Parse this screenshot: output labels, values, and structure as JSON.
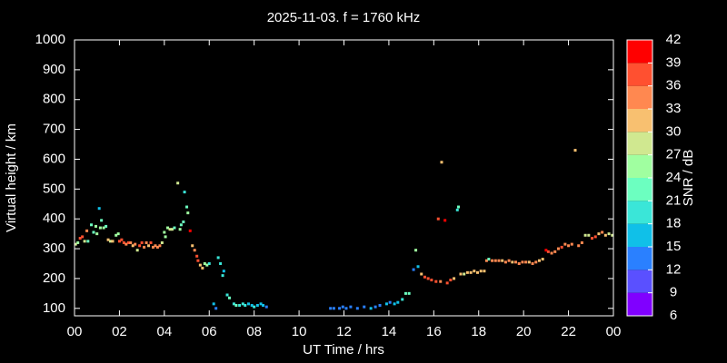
{
  "chart_data": {
    "type": "scatter",
    "title": "2025-11-03. f = 1760 kHz",
    "x_label": "UT Time / hrs",
    "y_label": "Virtual height / km",
    "xlim": [
      0,
      24
    ],
    "ylim": [
      75,
      1000
    ],
    "xticks": [
      {
        "value": 0,
        "label": "00"
      },
      {
        "value": 2,
        "label": "02"
      },
      {
        "value": 4,
        "label": "04"
      },
      {
        "value": 6,
        "label": "06"
      },
      {
        "value": 8,
        "label": "08"
      },
      10,
      12,
      14,
      16,
      18,
      20,
      22,
      {
        "value": 24,
        "label": "00"
      }
    ],
    "yticks": [
      100,
      200,
      300,
      400,
      500,
      600,
      700,
      800,
      900,
      1000
    ],
    "colorbar": {
      "label": "SNR / dB",
      "ticks": [
        6,
        9,
        12,
        15,
        18,
        21,
        24,
        27,
        30,
        33,
        36,
        39,
        42
      ],
      "colors": [
        "#8000ff",
        "#5a50ff",
        "#2a80ff",
        "#10c0e8",
        "#3ae6d8",
        "#6cffc0",
        "#a0ffa0",
        "#d0e890",
        "#f8c070",
        "#ff8850",
        "#ff5030",
        "#ff0000"
      ]
    },
    "x": [
      0.05,
      0.15,
      0.25,
      0.35,
      0.45,
      0.55,
      0.6,
      0.75,
      0.85,
      0.95,
      1.0,
      1.1,
      1.15,
      1.2,
      1.3,
      1.4,
      1.5,
      1.6,
      1.7,
      1.85,
      1.95,
      2.0,
      2.1,
      2.2,
      2.3,
      2.4,
      2.5,
      2.6,
      2.7,
      2.8,
      2.9,
      3.0,
      3.1,
      3.2,
      3.3,
      3.4,
      3.5,
      3.6,
      3.7,
      3.8,
      3.9,
      4.0,
      4.05,
      4.15,
      4.25,
      4.35,
      4.45,
      4.6,
      4.7,
      4.75,
      4.85,
      4.9,
      5.0,
      5.05,
      5.15,
      5.25,
      5.35,
      5.45,
      5.5,
      5.6,
      5.7,
      5.8,
      5.9,
      6.0,
      6.2,
      6.3,
      6.4,
      6.5,
      6.6,
      6.65,
      6.8,
      6.9,
      7.1,
      7.2,
      7.35,
      7.5,
      7.6,
      7.75,
      7.9,
      8.0,
      8.15,
      8.3,
      8.4,
      8.55,
      11.4,
      11.55,
      11.8,
      11.95,
      12.1,
      12.3,
      12.6,
      12.9,
      13.2,
      13.4,
      13.6,
      13.9,
      14.05,
      14.25,
      14.4,
      14.6,
      14.75,
      14.9,
      15.1,
      15.2,
      15.3,
      15.45,
      15.6,
      15.75,
      15.9,
      16.1,
      16.2,
      16.3,
      16.35,
      16.5,
      16.6,
      16.75,
      16.9,
      17.05,
      17.1,
      17.2,
      17.35,
      17.5,
      17.65,
      17.8,
      17.95,
      18.1,
      18.25,
      18.35,
      18.45,
      18.6,
      18.75,
      18.9,
      19.05,
      19.2,
      19.35,
      19.5,
      19.65,
      19.8,
      19.95,
      20.1,
      20.25,
      20.4,
      20.55,
      20.7,
      20.85,
      21.0,
      21.1,
      21.25,
      21.4,
      21.55,
      21.7,
      21.85,
      22.0,
      22.15,
      22.3,
      22.45,
      22.6,
      22.75,
      22.9,
      23.05,
      23.2,
      23.35,
      23.5,
      23.65,
      23.8,
      23.95
    ],
    "y": [
      315,
      320,
      335,
      340,
      325,
      360,
      325,
      380,
      355,
      375,
      350,
      435,
      370,
      395,
      370,
      375,
      330,
      325,
      325,
      345,
      350,
      325,
      330,
      320,
      315,
      320,
      320,
      310,
      315,
      295,
      310,
      320,
      305,
      320,
      310,
      320,
      305,
      310,
      305,
      310,
      320,
      355,
      340,
      370,
      365,
      365,
      370,
      520,
      365,
      380,
      390,
      490,
      440,
      420,
      360,
      310,
      295,
      275,
      260,
      245,
      235,
      250,
      245,
      250,
      115,
      100,
      270,
      250,
      210,
      225,
      145,
      135,
      115,
      110,
      110,
      115,
      110,
      115,
      110,
      105,
      110,
      115,
      110,
      105,
      100,
      100,
      100,
      105,
      100,
      105,
      100,
      105,
      100,
      105,
      110,
      115,
      120,
      115,
      120,
      130,
      150,
      150,
      230,
      295,
      240,
      215,
      205,
      200,
      195,
      190,
      400,
      190,
      590,
      395,
      185,
      195,
      200,
      430,
      440,
      215,
      215,
      220,
      220,
      225,
      220,
      225,
      225,
      260,
      265,
      260,
      260,
      260,
      260,
      255,
      260,
      255,
      255,
      250,
      255,
      255,
      255,
      250,
      255,
      260,
      265,
      295,
      290,
      285,
      290,
      300,
      305,
      315,
      310,
      315,
      630,
      310,
      320,
      345,
      345,
      335,
      340,
      350,
      355,
      345,
      350,
      345
    ],
    "snr": [
      27,
      24,
      36,
      36,
      27,
      33,
      21,
      21,
      21,
      24,
      24,
      15,
      24,
      21,
      24,
      21,
      30,
      27,
      30,
      24,
      24,
      36,
      36,
      36,
      33,
      36,
      33,
      30,
      33,
      27,
      36,
      36,
      33,
      33,
      30,
      36,
      33,
      33,
      33,
      33,
      27,
      24,
      24,
      24,
      27,
      27,
      21,
      27,
      24,
      21,
      21,
      18,
      21,
      24,
      39,
      30,
      33,
      36,
      36,
      30,
      30,
      24,
      24,
      18,
      15,
      12,
      18,
      18,
      18,
      15,
      18,
      21,
      18,
      21,
      18,
      18,
      18,
      15,
      15,
      18,
      15,
      15,
      15,
      12,
      12,
      12,
      12,
      12,
      12,
      12,
      12,
      12,
      15,
      12,
      12,
      15,
      12,
      15,
      15,
      18,
      21,
      21,
      12,
      24,
      15,
      30,
      36,
      36,
      36,
      36,
      36,
      33,
      30,
      39,
      36,
      36,
      30,
      18,
      21,
      30,
      27,
      30,
      30,
      30,
      30,
      30,
      30,
      33,
      21,
      33,
      33,
      33,
      30,
      33,
      33,
      30,
      33,
      33,
      33,
      33,
      30,
      33,
      33,
      30,
      30,
      39,
      36,
      33,
      33,
      33,
      36,
      33,
      33,
      33,
      30,
      33,
      33,
      27,
      27,
      36,
      36,
      30,
      33,
      30,
      27,
      27
    ]
  }
}
